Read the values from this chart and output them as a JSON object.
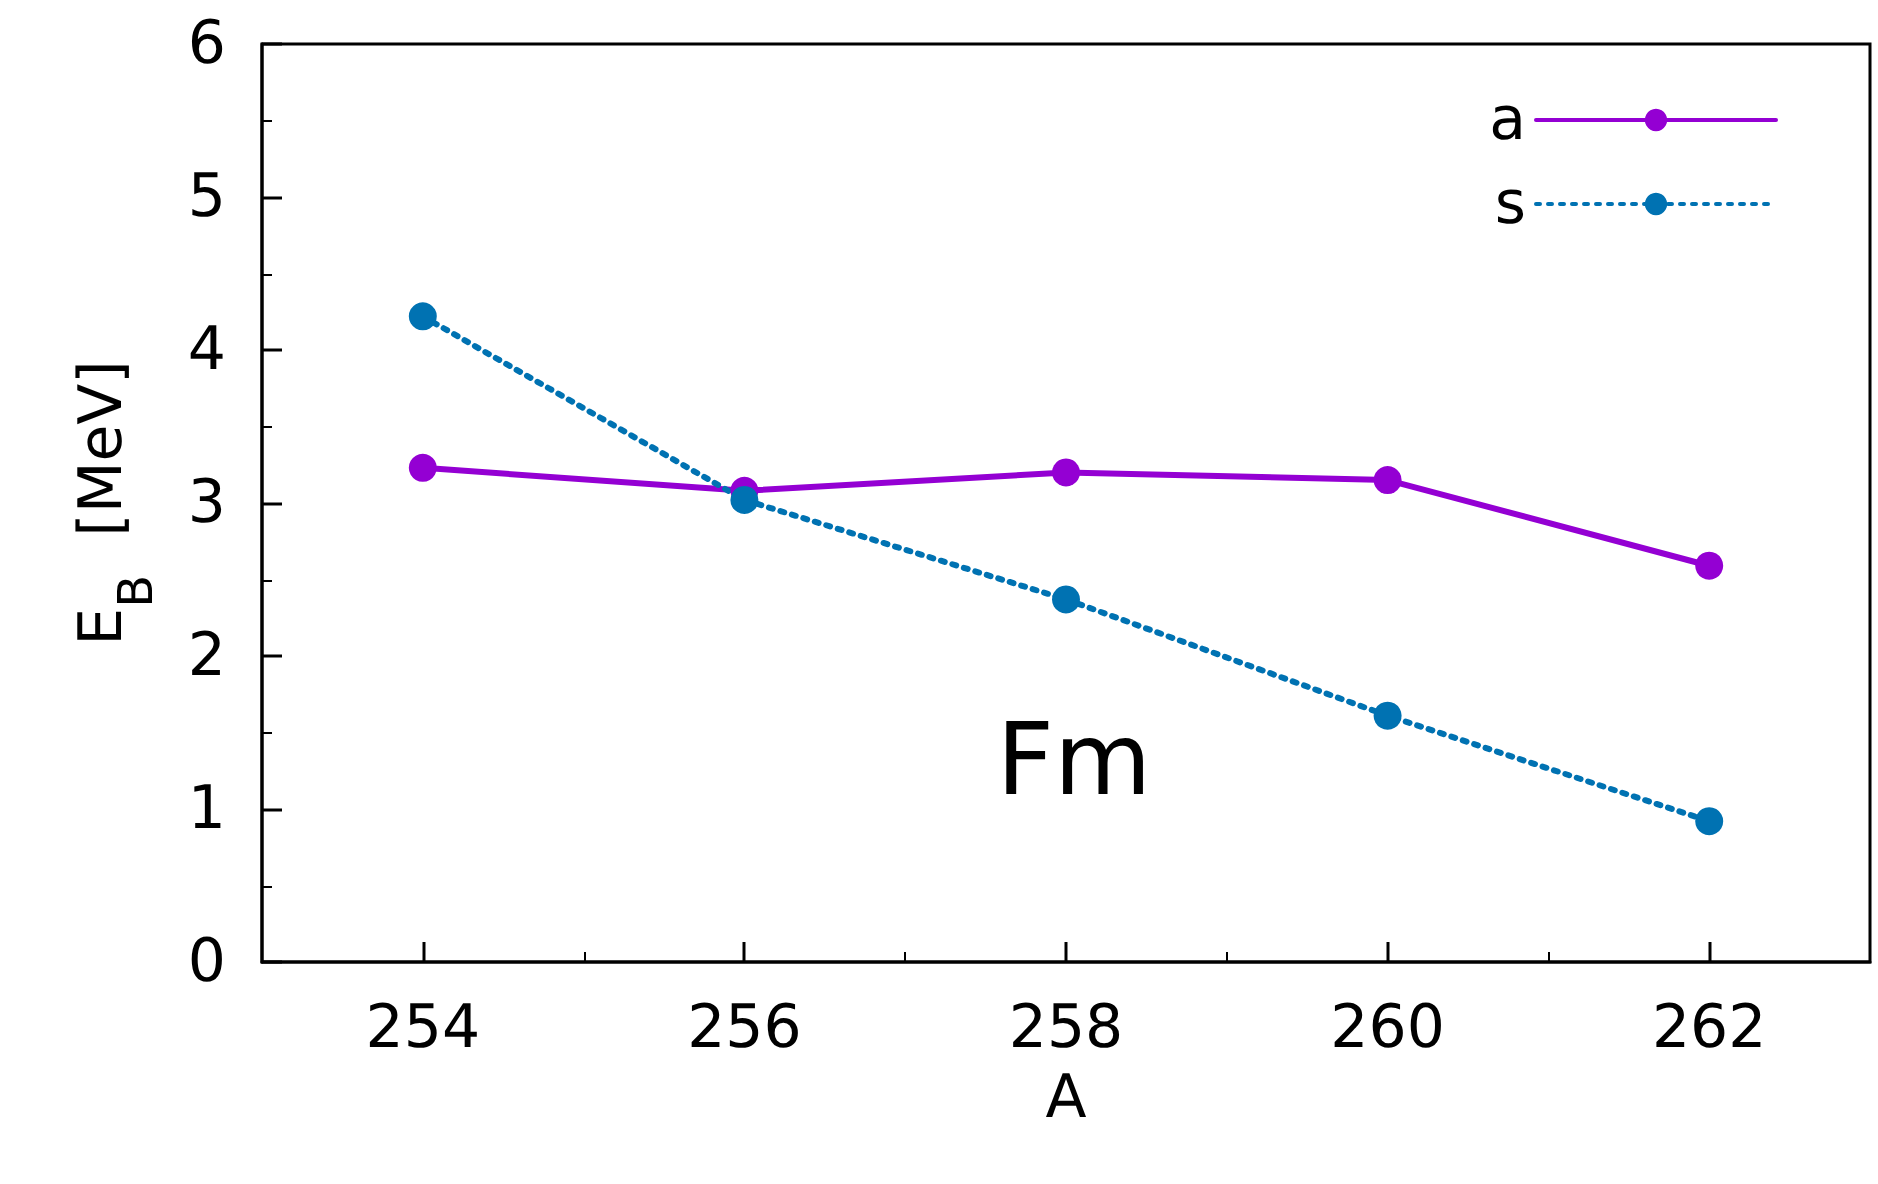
{
  "chart_data": {
    "type": "line",
    "xlabel": "A",
    "ylabel": "E$_{B}$  [MeV]",
    "x": [
      254,
      256,
      258,
      260,
      262
    ],
    "series": [
      {
        "name": "a",
        "color": "#9400d3",
        "line_style": "solid",
        "values": [
          3.23,
          3.08,
          3.2,
          3.15,
          2.59
        ]
      },
      {
        "name": "s",
        "color": "#0072b2",
        "line_style": "dotted",
        "values": [
          4.22,
          3.02,
          2.37,
          1.61,
          0.92
        ]
      }
    ],
    "xlim": [
      253,
      263
    ],
    "xticks": [
      254,
      256,
      258,
      260,
      262
    ],
    "ylim": [
      0,
      6
    ],
    "yticks": [
      0,
      1,
      2,
      3,
      4,
      5,
      6
    ],
    "annotations": [
      "Fm"
    ],
    "marker": "circle",
    "grid": false,
    "legend": "top right"
  }
}
